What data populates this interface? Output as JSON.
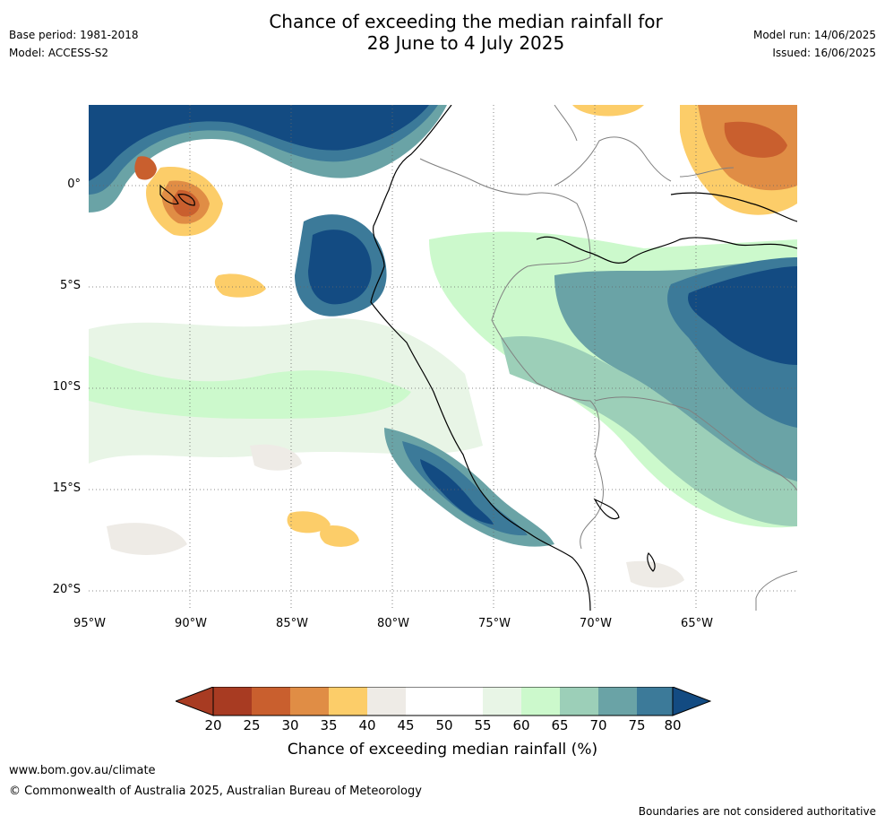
{
  "title": {
    "line1": "Chance of exceeding the median rainfall for",
    "line2": "28 June to 4 July 2025"
  },
  "meta": {
    "base_period": "Base period: 1981-2018",
    "model": "Model: ACCESS-S2",
    "model_run": "Model run: 14/06/2025",
    "issued": "Issued: 16/06/2025"
  },
  "map": {
    "lat_labels": [
      "0°",
      "5°S",
      "10°S",
      "15°S",
      "20°S"
    ],
    "lon_labels": [
      "95°W",
      "90°W",
      "85°W",
      "80°W",
      "75°W",
      "70°W",
      "65°W"
    ],
    "lat_range": [
      4,
      -21
    ],
    "lon_range": [
      -95,
      -60
    ],
    "colors": {
      "p20": "#a83b22",
      "p25": "#c95f2e",
      "p30": "#e08d45",
      "p35": "#fccd69",
      "p40": "#eeebe6",
      "p45": "#ffffff",
      "p50": "#ffffff",
      "p55": "#e8f5e6",
      "p60": "#ccf9cc",
      "p65": "#9ccfb8",
      "p70": "#6aa3a6",
      "p75": "#3c7a99",
      "p80": "#134b82"
    }
  },
  "colorbar": {
    "label": "Chance of exceeding median rainfall (%)",
    "ticks": [
      "20",
      "25",
      "30",
      "35",
      "40",
      "45",
      "50",
      "55",
      "60",
      "65",
      "70",
      "75",
      "80"
    ]
  },
  "footer": {
    "url": "www.bom.gov.au/climate",
    "copyright": "© Commonwealth of Australia 2025, Australian Bureau of Meteorology",
    "disclaimer": "Boundaries are not considered authoritative"
  }
}
